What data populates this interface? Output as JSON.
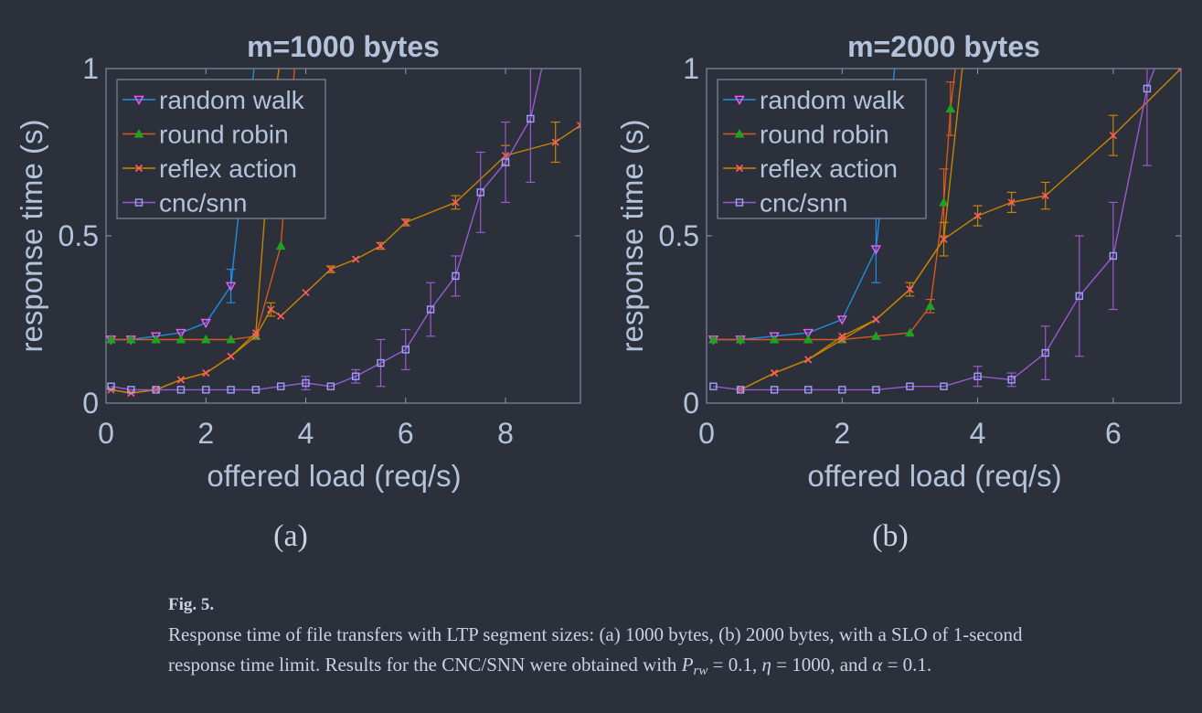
{
  "colors": {
    "background": "#2b303b",
    "axis": "#8d9bb2",
    "text": "#b4c3dc",
    "random_walk": "#1e8fe0",
    "round_robin": "#d8581e",
    "reflex_action": "#c88400",
    "cnc_snn": "#9b59d0",
    "marker_random_walk": "#ff57ff",
    "marker_round_robin": "#1fa31f",
    "marker_reflex_action": "#ff5e57",
    "marker_cnc_snn": "#9da2ff"
  },
  "panels": [
    {
      "label": "(a)"
    },
    {
      "label": "(b)"
    }
  ],
  "caption": {
    "fig_number": "Fig. 5.",
    "text_part1": "Response time of file transfers with LTP segment sizes: (a) 1000 bytes, (b) 2000 bytes, with a SLO of 1-second response time limit. Results for the CNC/SNN were obtained with",
    "p_symbol": "P",
    "p_subscript": "rw",
    "p_value": " = 0.1,",
    "eta_symbol": "η",
    "eta_value": " = 1000, and",
    "alpha_symbol": "α",
    "alpha_value": " = 0.1."
  },
  "chart_data": [
    {
      "type": "line",
      "title": "m=1000 bytes",
      "xlabel": "offered load (req/s)",
      "ylabel": "response time (s)",
      "xlim": [
        0,
        9.5
      ],
      "ylim": [
        0,
        1
      ],
      "xticks": [
        0,
        2,
        4,
        6,
        8
      ],
      "yticks": [
        0,
        0.5,
        1
      ],
      "grid": false,
      "legend_position": "top-left",
      "series": [
        {
          "name": "random walk",
          "marker": "triangle-down",
          "x": [
            0.1,
            0.5,
            1,
            1.5,
            2,
            2.5,
            3.0
          ],
          "y": [
            0.19,
            0.19,
            0.2,
            0.21,
            0.24,
            0.35,
            1.05
          ],
          "err": [
            0,
            0,
            0,
            0,
            0,
            0.05,
            0
          ]
        },
        {
          "name": "round robin",
          "marker": "triangle-up",
          "x": [
            0.1,
            0.5,
            1,
            1.5,
            2,
            2.5,
            3,
            3.5,
            3.8
          ],
          "y": [
            0.19,
            0.19,
            0.19,
            0.19,
            0.19,
            0.19,
            0.2,
            0.47,
            1.05
          ],
          "err": [
            0,
            0,
            0,
            0,
            0,
            0,
            0,
            0,
            0
          ]
        },
        {
          "name": "reflex action",
          "marker": "x",
          "x": [
            0.1,
            0.5,
            1,
            1.5,
            2,
            2.5,
            3,
            3.3,
            3.5
          ],
          "y": [
            0.04,
            0.03,
            0.04,
            0.07,
            0.09,
            0.14,
            0.21,
            0.8,
            1.05
          ],
          "err": [
            0,
            0,
            0,
            0,
            0,
            0,
            0,
            0,
            0
          ]
        },
        {
          "name": "",
          "marker": "x",
          "x": [
            0.1,
            0.5,
            1,
            1.5,
            2,
            2.5,
            3,
            3.3,
            3.5,
            4,
            4.5,
            5,
            5.5,
            6,
            7,
            8,
            9,
            9.5
          ],
          "y": [
            0.04,
            0.03,
            0.04,
            0.07,
            0.09,
            0.14,
            0.2,
            0.28,
            0.26,
            0.33,
            0.4,
            0.43,
            0.47,
            0.54,
            0.6,
            0.74,
            0.78,
            0.83
          ],
          "err": [
            0,
            0,
            0,
            0,
            0,
            0,
            0,
            0.02,
            0,
            0,
            0.01,
            0,
            0.01,
            0.01,
            0.02,
            0.03,
            0.06,
            0
          ]
        },
        {
          "name": "cnc/snn",
          "marker": "square",
          "x": [
            0.1,
            0.5,
            1,
            1.5,
            2,
            2.5,
            3,
            3.5,
            4,
            4.5,
            5,
            5.5,
            6,
            6.5,
            7,
            7.5,
            8,
            8.5,
            8.8
          ],
          "y": [
            0.05,
            0.04,
            0.04,
            0.04,
            0.04,
            0.04,
            0.04,
            0.05,
            0.06,
            0.05,
            0.08,
            0.12,
            0.16,
            0.28,
            0.38,
            0.63,
            0.72,
            0.85,
            1.05
          ],
          "err": [
            0,
            0,
            0,
            0,
            0,
            0,
            0,
            0,
            0.02,
            0,
            0.02,
            0.07,
            0.06,
            0.08,
            0.06,
            0.12,
            0.12,
            0.19,
            0
          ]
        }
      ]
    },
    {
      "type": "line",
      "title": "m=2000 bytes",
      "xlabel": "offered load (req/s)",
      "ylabel": "response time (s)",
      "xlim": [
        0,
        7
      ],
      "ylim": [
        0,
        1
      ],
      "xticks": [
        0,
        2,
        4,
        6
      ],
      "yticks": [
        0,
        0.5,
        1
      ],
      "grid": false,
      "legend_position": "top-left",
      "series": [
        {
          "name": "random walk",
          "marker": "triangle-down",
          "x": [
            0.1,
            0.5,
            1,
            1.5,
            2,
            2.5,
            2.8
          ],
          "y": [
            0.19,
            0.19,
            0.2,
            0.21,
            0.25,
            0.46,
            1.05
          ],
          "err": [
            0,
            0,
            0,
            0,
            0,
            0.1,
            0
          ]
        },
        {
          "name": "round robin",
          "marker": "triangle-up",
          "x": [
            0.1,
            0.5,
            1,
            1.5,
            2,
            2.5,
            3,
            3.3,
            3.5,
            3.6,
            3.7
          ],
          "y": [
            0.19,
            0.19,
            0.19,
            0.19,
            0.19,
            0.2,
            0.21,
            0.29,
            0.6,
            0.88,
            1.05
          ],
          "err": [
            0,
            0,
            0,
            0,
            0,
            0,
            0,
            0.02,
            0.1,
            0.08,
            0
          ]
        },
        {
          "name": "reflex action",
          "marker": "x",
          "x": [
            0.5,
            1,
            1.5,
            2,
            2.5,
            3,
            3.5,
            3.8
          ],
          "y": [
            0.04,
            0.09,
            0.13,
            0.2,
            0.25,
            0.34,
            0.49,
            1.05
          ],
          "err": [
            0,
            0,
            0,
            0,
            0,
            0.02,
            0.05,
            0
          ]
        },
        {
          "name": "",
          "marker": "x",
          "x": [
            0.5,
            1,
            1.5,
            2,
            2.5,
            3,
            3.5,
            4,
            4.5,
            5,
            6,
            7
          ],
          "y": [
            0.04,
            0.09,
            0.13,
            0.19,
            0.25,
            0.34,
            0.49,
            0.56,
            0.6,
            0.62,
            0.8,
            1.0
          ],
          "err": [
            0,
            0,
            0,
            0,
            0,
            0,
            0,
            0.03,
            0.03,
            0.04,
            0.06,
            0
          ]
        },
        {
          "name": "cnc/snn",
          "marker": "square",
          "x": [
            0.1,
            0.5,
            1,
            1.5,
            2,
            2.5,
            3,
            3.5,
            4,
            4.5,
            5,
            5.5,
            6,
            6.5,
            6.7
          ],
          "y": [
            0.05,
            0.04,
            0.04,
            0.04,
            0.04,
            0.04,
            0.05,
            0.05,
            0.08,
            0.07,
            0.15,
            0.32,
            0.44,
            0.94,
            1.05
          ],
          "err": [
            0,
            0,
            0,
            0,
            0,
            0,
            0,
            0,
            0.03,
            0.02,
            0.08,
            0.18,
            0.16,
            0.23,
            0
          ]
        }
      ]
    }
  ]
}
